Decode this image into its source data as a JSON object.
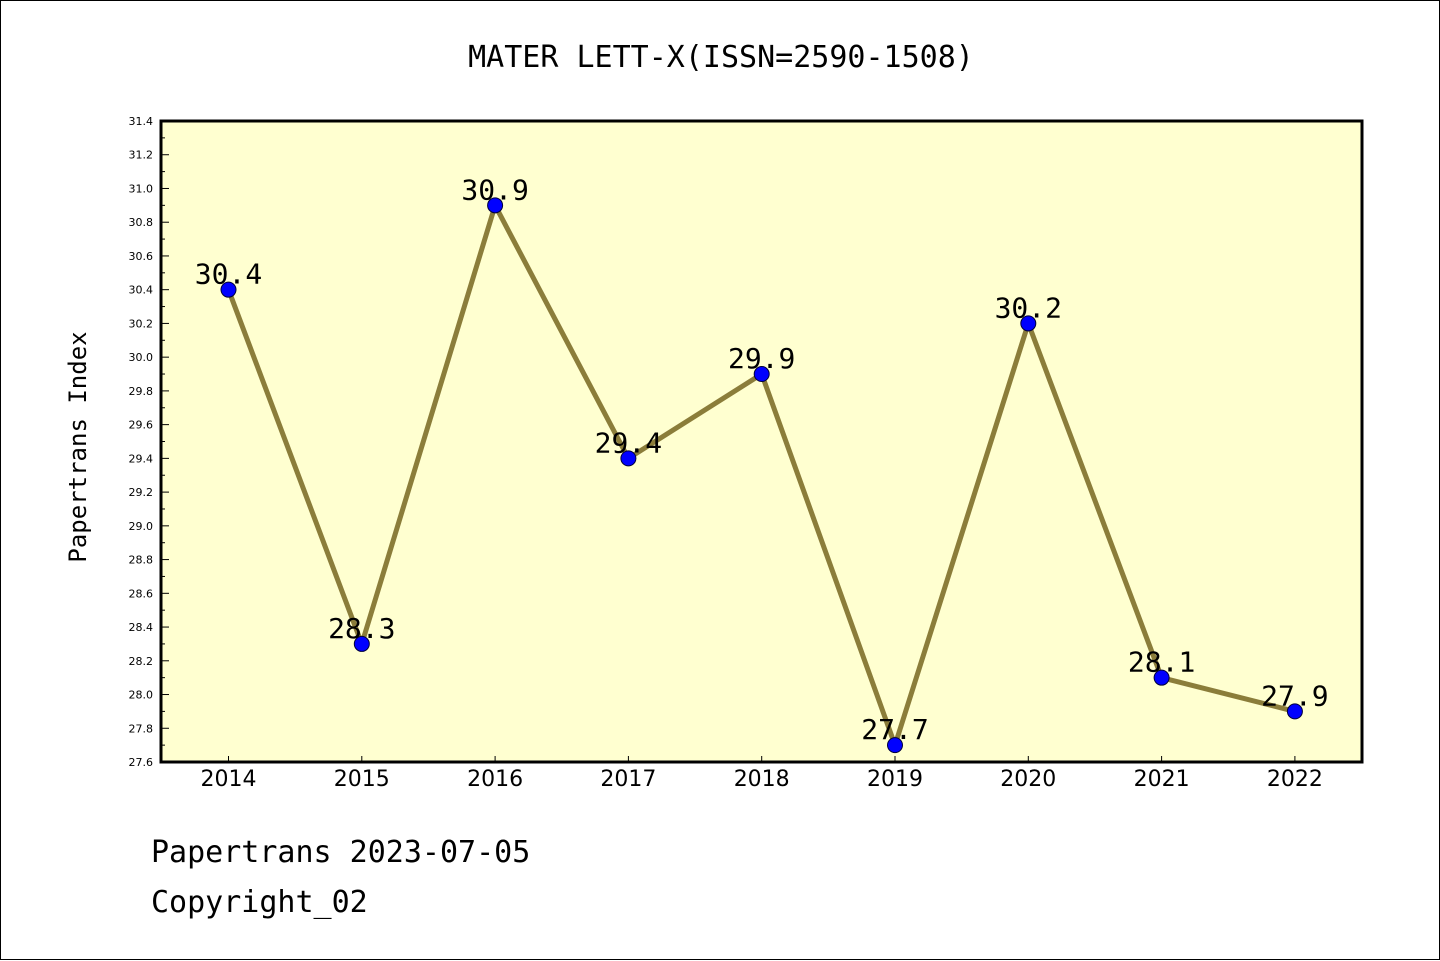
{
  "chart_data": {
    "type": "line",
    "title": "MATER LETT-X(ISSN=2590-1508)",
    "ylabel": "Papertrans Index",
    "xlabel": "",
    "categories": [
      "2014",
      "2015",
      "2016",
      "2017",
      "2018",
      "2019",
      "2020",
      "2021",
      "2022"
    ],
    "series": [
      {
        "values": [
          30.4,
          28.3,
          30.9,
          29.4,
          29.9,
          27.7,
          30.2,
          28.1,
          27.9
        ],
        "data_labels": [
          "30.4",
          "28.3",
          "30.9",
          "29.4",
          "29.9",
          "27.7",
          "30.2",
          "28.1",
          "27.9"
        ]
      }
    ],
    "ylim": [
      27.6,
      31.4
    ],
    "yticks": [
      "27.6",
      "27.8",
      "28.0",
      "28.2",
      "28.4",
      "28.6",
      "28.8",
      "29.0",
      "29.2",
      "29.4",
      "29.6",
      "29.8",
      "30.0",
      "30.2",
      "30.4",
      "30.6",
      "30.8",
      "31.0",
      "31.2",
      "31.4"
    ],
    "grid": false,
    "legend": "none",
    "colors": {
      "plot_background": "#ffffd0",
      "line": "#8b7d3a",
      "marker": "#0000ff",
      "axes": "#000000"
    }
  },
  "footer": {
    "line1": "Papertrans 2023-07-05",
    "line2": "Copyright_02"
  }
}
